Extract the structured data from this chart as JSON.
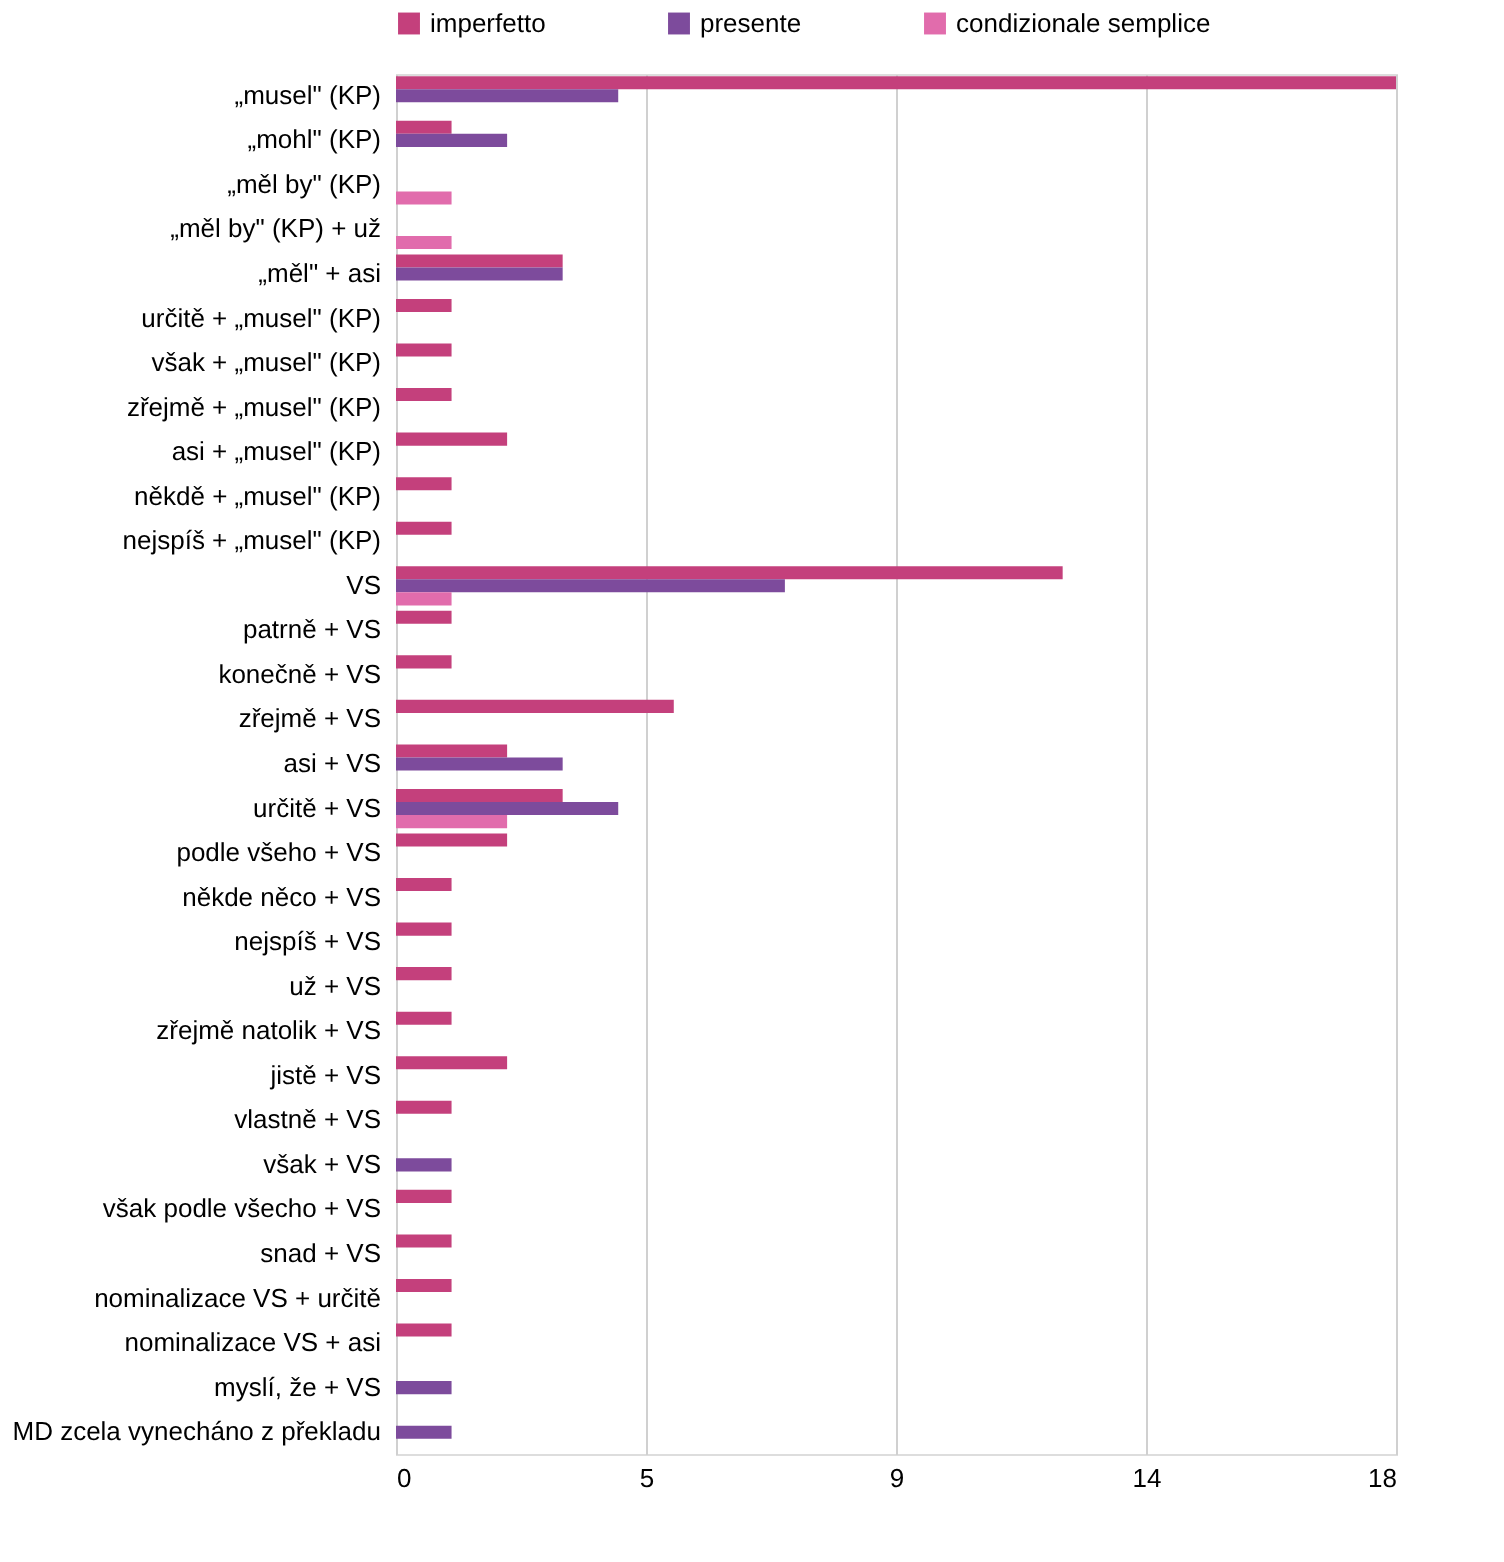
{
  "chart_data": {
    "type": "bar",
    "orientation": "horizontal",
    "legend": "top",
    "grid": "x",
    "categories": [
      "„musel\" (KP)",
      "„mohl\" (KP)",
      "„měl by\" (KP)",
      "„měl by\" (KP) + už",
      "„měl\" + asi",
      "určitě + „musel\" (KP)",
      "však + „musel\" (KP)",
      "zřejmě + „musel\" (KP)",
      "asi + „musel\" (KP)",
      "někdě + „musel\" (KP)",
      "nejspíš + „musel\" (KP)",
      "VS",
      "patrně + VS",
      "konečně + VS",
      "zřejmě + VS",
      "asi + VS",
      "určitě + VS",
      "podle všeho + VS",
      "někde něco + VS",
      "nejspíš + VS",
      "už + VS",
      "zřejmě natolik + VS",
      "jistě + VS",
      "vlastně + VS",
      "však + VS",
      "však podle všecho + VS",
      "snad + VS",
      "nominalizace VS + určitě",
      "nominalizace VS + asi",
      "myslí, že + VS",
      "MD zcela vynecháno z překladu"
    ],
    "xlim": [
      0,
      18
    ],
    "xticks": [
      0,
      {
        "value": 4.5,
        "label": "5"
      },
      9,
      {
        "value": 13.5,
        "label": "14"
      },
      18
    ],
    "series": [
      {
        "name": "imperfetto",
        "color": "#c4407c",
        "values": [
          18,
          1,
          null,
          null,
          3,
          1,
          1,
          1,
          2,
          1,
          1,
          12,
          1,
          1,
          5,
          2,
          3,
          2,
          1,
          1,
          1,
          1,
          2,
          1,
          null,
          1,
          1,
          1,
          1,
          null,
          null
        ]
      },
      {
        "name": "presente",
        "color": "#7d4b9c",
        "values": [
          4,
          2,
          null,
          null,
          3,
          null,
          null,
          null,
          null,
          null,
          null,
          7,
          null,
          null,
          null,
          3,
          4,
          null,
          null,
          null,
          null,
          null,
          null,
          null,
          1,
          null,
          null,
          null,
          null,
          1,
          1
        ]
      },
      {
        "name": "condizionale semplice",
        "color": "#e16cac",
        "values": [
          null,
          null,
          1,
          1,
          null,
          null,
          null,
          null,
          null,
          null,
          null,
          1,
          null,
          null,
          null,
          null,
          2,
          null,
          null,
          null,
          null,
          null,
          null,
          null,
          null,
          null,
          null,
          null,
          null,
          null,
          null
        ]
      }
    ]
  }
}
